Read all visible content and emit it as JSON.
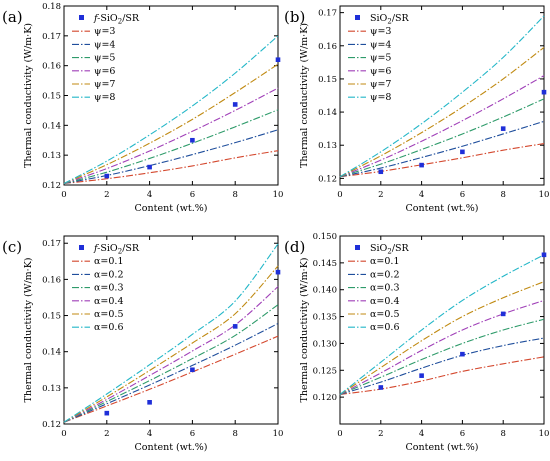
{
  "chart_data": [
    {
      "type": "line",
      "panel_label": "(a)",
      "xlabel": "Content (wt.%)",
      "ylabel": "Thermal conductivity (W/m·K)",
      "xlim": [
        0,
        10
      ],
      "ylim": [
        0.12,
        0.18
      ],
      "xticks": [
        0,
        2,
        4,
        6,
        8,
        10
      ],
      "yticks": [
        0.12,
        0.13,
        0.14,
        0.15,
        0.16,
        0.17,
        0.18
      ],
      "ytick_labels": [
        "0.12",
        "0.13",
        "0.14",
        "0.15",
        "0.16",
        "0.17",
        "0.18"
      ],
      "grid": false,
      "legend_position": "top-left",
      "markers": {
        "name_prefix": "f-",
        "name": "SiO",
        "name_sub": "2",
        "name_suffix": "/SR",
        "x": [
          2,
          4,
          6,
          8,
          10
        ],
        "y": [
          0.123,
          0.126,
          0.135,
          0.147,
          0.162
        ]
      },
      "series": [
        {
          "name": "ψ=3",
          "color": "#d4482e",
          "x": [
            0,
            2,
            4,
            6,
            8,
            10
          ],
          "y": [
            0.1205,
            0.1221,
            0.1241,
            0.1264,
            0.1291,
            0.1315
          ]
        },
        {
          "name": "ψ=4",
          "color": "#1f4e9c",
          "x": [
            0,
            2,
            4,
            6,
            8,
            10
          ],
          "y": [
            0.1205,
            0.1232,
            0.1265,
            0.1302,
            0.1342,
            0.1385
          ]
        },
        {
          "name": "ψ=5",
          "color": "#2e9b6a",
          "x": [
            0,
            2,
            4,
            6,
            8,
            10
          ],
          "y": [
            0.1205,
            0.1243,
            0.1289,
            0.134,
            0.1395,
            0.1452
          ]
        },
        {
          "name": "ψ=6",
          "color": "#a040b8",
          "x": [
            0,
            2,
            4,
            6,
            8,
            10
          ],
          "y": [
            0.1205,
            0.1255,
            0.1314,
            0.138,
            0.145,
            0.1525
          ]
        },
        {
          "name": "ψ=7",
          "color": "#c08a12",
          "x": [
            0,
            2,
            4,
            6,
            8,
            10
          ],
          "y": [
            0.1205,
            0.1268,
            0.134,
            0.142,
            0.151,
            0.1605
          ]
        },
        {
          "name": "ψ=8",
          "color": "#24b7c8",
          "x": [
            0,
            2,
            4,
            6,
            8,
            10
          ],
          "y": [
            0.1205,
            0.128,
            0.1368,
            0.1465,
            0.1575,
            0.17
          ]
        }
      ]
    },
    {
      "type": "line",
      "panel_label": "(b)",
      "xlabel": "Content (wt.%)",
      "ylabel": "Thermal conductivity (W/m·K)",
      "xlim": [
        0,
        10
      ],
      "ylim": [
        0.118,
        0.172
      ],
      "xticks": [
        0,
        2,
        4,
        6,
        8,
        10
      ],
      "yticks": [
        0.12,
        0.13,
        0.14,
        0.15,
        0.16,
        0.17
      ],
      "ytick_labels": [
        "0.12",
        "0.13",
        "0.14",
        "0.15",
        "0.16",
        "0.17"
      ],
      "grid": false,
      "legend_position": "top-left",
      "markers": {
        "name_prefix": "",
        "name": "SiO",
        "name_sub": "2",
        "name_suffix": "/SR",
        "x": [
          2,
          4,
          6,
          8,
          10
        ],
        "y": [
          0.122,
          0.124,
          0.128,
          0.135,
          0.146
        ]
      },
      "series": [
        {
          "name": "ψ=3",
          "color": "#d4482e",
          "x": [
            0,
            2,
            4,
            6,
            8,
            10
          ],
          "y": [
            0.1205,
            0.1221,
            0.1241,
            0.1262,
            0.1285,
            0.1305
          ]
        },
        {
          "name": "ψ=4",
          "color": "#1f4e9c",
          "x": [
            0,
            2,
            4,
            6,
            8,
            10
          ],
          "y": [
            0.1205,
            0.1231,
            0.1263,
            0.1297,
            0.1334,
            0.1372
          ]
        },
        {
          "name": "ψ=5",
          "color": "#2e9b6a",
          "x": [
            0,
            2,
            4,
            6,
            8,
            10
          ],
          "y": [
            0.1205,
            0.1243,
            0.1287,
            0.1334,
            0.1385,
            0.144
          ]
        },
        {
          "name": "ψ=6",
          "color": "#a040b8",
          "x": [
            0,
            2,
            4,
            6,
            8,
            10
          ],
          "y": [
            0.1205,
            0.1255,
            0.1312,
            0.1374,
            0.144,
            0.151
          ]
        },
        {
          "name": "ψ=7",
          "color": "#c08a12",
          "x": [
            0,
            2,
            4,
            6,
            8,
            10
          ],
          "y": [
            0.1205,
            0.1268,
            0.1338,
            0.1415,
            0.15,
            0.1595
          ]
        },
        {
          "name": "ψ=8",
          "color": "#24b7c8",
          "x": [
            0,
            2,
            4,
            6,
            8,
            10
          ],
          "y": [
            0.1205,
            0.128,
            0.1365,
            0.146,
            0.1565,
            0.169
          ]
        }
      ]
    },
    {
      "type": "line",
      "panel_label": "(c)",
      "xlabel": "Content (wt.%)",
      "ylabel": "Thermal conductivity (W/m·K)",
      "xlim": [
        0,
        10
      ],
      "ylim": [
        0.12,
        0.172
      ],
      "xticks": [
        0,
        2,
        4,
        6,
        8,
        10
      ],
      "yticks": [
        0.12,
        0.13,
        0.14,
        0.15,
        0.16,
        0.17
      ],
      "ytick_labels": [
        "0.12",
        "0.13",
        "0.14",
        "0.15",
        "0.16",
        "0.17"
      ],
      "grid": false,
      "legend_position": "top-left",
      "markers": {
        "name_prefix": "f-",
        "name": "SiO",
        "name_sub": "2",
        "name_suffix": "/SR",
        "x": [
          2,
          4,
          6,
          8,
          10
        ],
        "y": [
          0.123,
          0.126,
          0.135,
          0.147,
          0.162
        ]
      },
      "series": [
        {
          "name": "α=0.1",
          "color": "#d4482e",
          "x": [
            0,
            2,
            4,
            6,
            8,
            10
          ],
          "y": [
            0.1205,
            0.125,
            0.1296,
            0.1344,
            0.1393,
            0.1443
          ]
        },
        {
          "name": "α=0.2",
          "color": "#1f4e9c",
          "x": [
            0,
            2,
            4,
            6,
            8,
            10
          ],
          "y": [
            0.1205,
            0.1256,
            0.1308,
            0.1362,
            0.1418,
            0.1478
          ]
        },
        {
          "name": "α=0.3",
          "color": "#2e9b6a",
          "x": [
            0,
            2,
            4,
            6,
            8,
            10
          ],
          "y": [
            0.1205,
            0.1262,
            0.132,
            0.1381,
            0.1445,
            0.153
          ]
        },
        {
          "name": "α=0.4",
          "color": "#a040b8",
          "x": [
            0,
            2,
            4,
            6,
            8,
            10
          ],
          "y": [
            0.1205,
            0.1268,
            0.1334,
            0.1402,
            0.1474,
            0.158
          ]
        },
        {
          "name": "α=0.5",
          "color": "#c08a12",
          "x": [
            0,
            2,
            4,
            6,
            8,
            10
          ],
          "y": [
            0.1205,
            0.1275,
            0.1348,
            0.1424,
            0.1505,
            0.1637
          ]
        },
        {
          "name": "α=0.6",
          "color": "#24b7c8",
          "x": [
            0,
            2,
            4,
            6,
            8,
            10
          ],
          "y": [
            0.1205,
            0.1283,
            0.1364,
            0.1448,
            0.154,
            0.1698
          ]
        }
      ]
    },
    {
      "type": "line",
      "panel_label": "(d)",
      "xlabel": "Content (wt.%)",
      "ylabel": "Thermal conductivity (W/m·K)",
      "xlim": [
        0,
        10
      ],
      "ylim": [
        0.115,
        0.15
      ],
      "xticks": [
        0,
        2,
        4,
        6,
        8,
        10
      ],
      "yticks": [
        0.12,
        0.125,
        0.13,
        0.135,
        0.14,
        0.145,
        0.15
      ],
      "ytick_labels": [
        "0.120",
        "0.125",
        "0.130",
        "0.135",
        "0.140",
        "0.145",
        "0.150"
      ],
      "grid": false,
      "legend_position": "top-left",
      "markers": {
        "name_prefix": "",
        "name": "SiO",
        "name_sub": "2",
        "name_suffix": "/SR",
        "x": [
          2,
          4,
          6,
          8,
          10
        ],
        "y": [
          0.1218,
          0.124,
          0.128,
          0.1355,
          0.1465
        ]
      },
      "series": [
        {
          "name": "α=0.1",
          "color": "#d4482e",
          "x": [
            0,
            2,
            4,
            6,
            8,
            10
          ],
          "y": [
            0.1205,
            0.1215,
            0.123,
            0.1248,
            0.1262,
            0.1275
          ]
        },
        {
          "name": "α=0.2",
          "color": "#1f4e9c",
          "x": [
            0,
            2,
            4,
            6,
            8,
            10
          ],
          "y": [
            0.1205,
            0.1228,
            0.1254,
            0.1278,
            0.1296,
            0.131
          ]
        },
        {
          "name": "α=0.3",
          "color": "#2e9b6a",
          "x": [
            0,
            2,
            4,
            6,
            8,
            10
          ],
          "y": [
            0.1205,
            0.1237,
            0.127,
            0.13,
            0.1325,
            0.1345
          ]
        },
        {
          "name": "α=0.4",
          "color": "#a040b8",
          "x": [
            0,
            2,
            4,
            6,
            8,
            10
          ],
          "y": [
            0.1205,
            0.1245,
            0.1287,
            0.1325,
            0.1355,
            0.138
          ]
        },
        {
          "name": "α=0.5",
          "color": "#c08a12",
          "x": [
            0,
            2,
            4,
            6,
            8,
            10
          ],
          "y": [
            0.1205,
            0.1255,
            0.1305,
            0.135,
            0.1385,
            0.1415
          ]
        },
        {
          "name": "α=0.6",
          "color": "#24b7c8",
          "x": [
            0,
            2,
            4,
            6,
            8,
            10
          ],
          "y": [
            0.1205,
            0.1265,
            0.1325,
            0.138,
            0.1425,
            0.1465
          ]
        }
      ]
    }
  ]
}
